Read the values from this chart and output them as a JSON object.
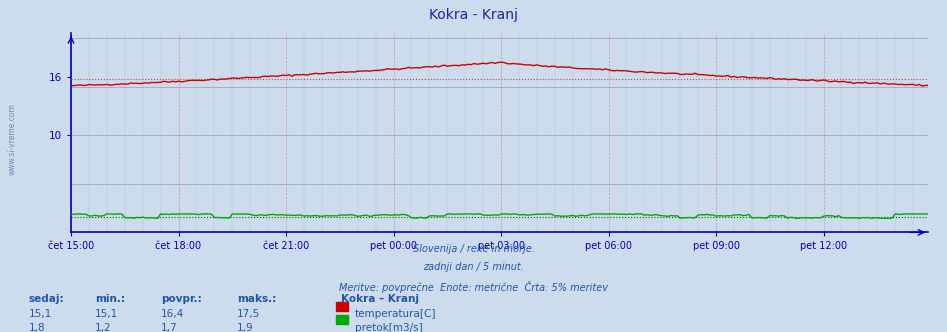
{
  "title": "Kokra - Kranj",
  "title_color": "#2222aa",
  "bg_color": "#ccdcec",
  "plot_bg_color": "#ccdcec",
  "x_tick_labels": [
    "čet 15:00",
    "čet 18:00",
    "čet 21:00",
    "pet 00:00",
    "pet 03:00",
    "pet 06:00",
    "pet 09:00",
    "pet 12:00"
  ],
  "x_tick_positions": [
    0,
    36,
    72,
    108,
    144,
    180,
    216,
    252
  ],
  "ylim": [
    0,
    20.5
  ],
  "n_points": 288,
  "temp_min": 15.1,
  "temp_max": 17.5,
  "temp_avg": 16.4,
  "temp_current": 15.1,
  "temp_dotted_val": 15.75,
  "flow_min": 1.2,
  "flow_max": 1.9,
  "flow_avg": 1.7,
  "flow_current": 1.8,
  "flow_dotted_val": 1.55,
  "temp_color": "#cc0000",
  "flow_color": "#00aa00",
  "temp_dotted_color": "#cc4444",
  "flow_dotted_color": "#006600",
  "axis_color": "#0000bb",
  "text_color": "#2255aa",
  "footer_line1": "Slovenija / reke in morje.",
  "footer_line2": "zadnji dan / 5 minut.",
  "footer_line3": "Meritve: povprečne  Enote: metrične  Črta: 5% meritev",
  "table_headers": [
    "sedaj:",
    "min.:",
    "povpr.:",
    "maks.:"
  ],
  "table_row1": [
    "15,1",
    "15,1",
    "16,4",
    "17,5"
  ],
  "table_row2": [
    "1,8",
    "1,2",
    "1,7",
    "1,9"
  ],
  "legend_title": "Kokra – Kranj",
  "legend_temp": "temperatura[C]",
  "legend_flow": "pretok[m3/s]",
  "left_label": "www.si-vreme.com"
}
